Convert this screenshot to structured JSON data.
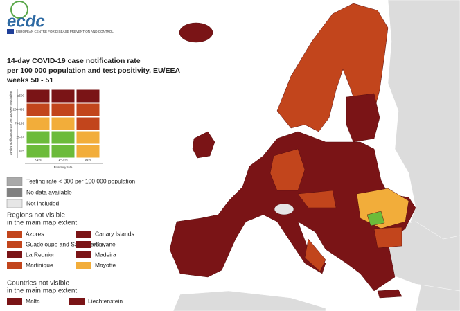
{
  "header": {
    "logo": "ecdc",
    "logo_subtitle": "EUROPEAN CENTRE FOR DISEASE PREVENTION AND CONTROL",
    "title": [
      "14-day COVID-19 case notification rate",
      "per 100 000 population and test positivity, EU/EEA",
      "weeks 50 - 51"
    ]
  },
  "matrix": {
    "y_axis_label": "14-day notification rate per 100 000 population",
    "row_labels": [
      "≥500",
      "200-499",
      "75-199",
      "25-74",
      "<25"
    ],
    "column_labels": [
      "<1%",
      "1-<4%",
      "≥4%"
    ],
    "x_axis_label": "Positivity rate",
    "cells": [
      [
        "#7a1416",
        "#7a1416",
        "#7a1416"
      ],
      [
        "#c2451c",
        "#c2451c",
        "#c2451c"
      ],
      [
        "#f2ad3a",
        "#f2ad3a",
        "#c2451c"
      ],
      [
        "#6cbb3a",
        "#6cbb3a",
        "#f2ad3a"
      ],
      [
        "#6cbb3a",
        "#6cbb3a",
        "#f2ad3a"
      ]
    ]
  },
  "status_legend": [
    {
      "label": "Testing rate < 300 per 100 000 population",
      "color": "#a9a9a9"
    },
    {
      "label": "No data available",
      "color": "#808080"
    },
    {
      "label": "Not included",
      "color": "#e6e6e6"
    }
  ],
  "regions": {
    "heading": [
      "Regions not visible",
      "in the main map extent"
    ],
    "items": [
      {
        "label": "Azores",
        "color": "#c2451c"
      },
      {
        "label": "Guadeloupe and Saint Martin",
        "color": "#c2451c"
      },
      {
        "label": "La Reunion",
        "color": "#7a1416"
      },
      {
        "label": "Martinique",
        "color": "#c2451c"
      },
      {
        "label": "Canary Islands",
        "color": "#7a1416"
      },
      {
        "label": "Guyane",
        "color": "#7a1416"
      },
      {
        "label": "Madeira",
        "color": "#7a1416"
      },
      {
        "label": "Mayotte",
        "color": "#f2ad3a"
      }
    ]
  },
  "countries": {
    "heading": [
      "Countries not visible",
      "in the main map extent"
    ],
    "items": [
      {
        "label": "Malta",
        "color": "#7a1416"
      },
      {
        "label": "Liechtenstein",
        "color": "#7a1416"
      }
    ]
  }
}
